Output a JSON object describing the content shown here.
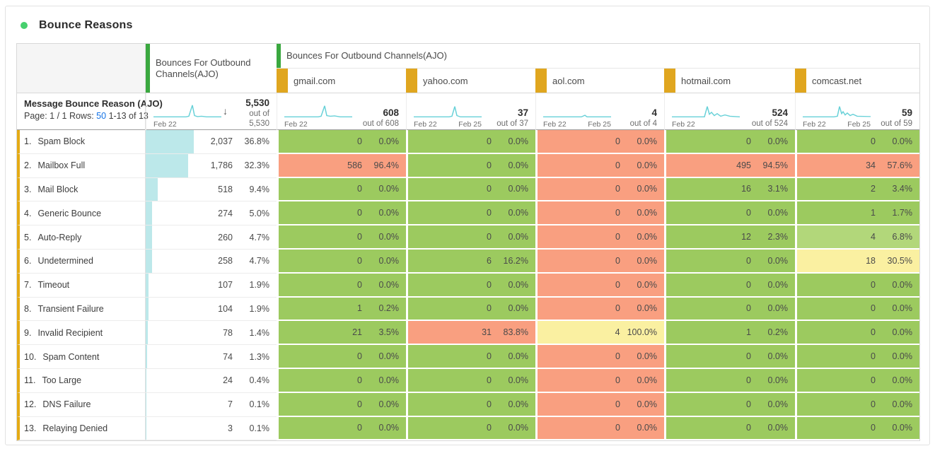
{
  "title": "Bounce Reasons",
  "sort_icon": "↓",
  "colors": {
    "green": "#9cca5f",
    "lightgreen": "#b2d77a",
    "yellow": "#faf0a1",
    "salmon": "#f99f80",
    "databar_cyan": "#bce8ea",
    "sparkline": "#68d1d8",
    "group_green_bar": "#3aa83f",
    "column_gold_bar": "#e0a61f",
    "row_gold_bar": "#e5ab14",
    "link_blue": "#1473e6",
    "title_dot_green": "#47d06e"
  },
  "table": {
    "groups": {
      "totals_label": "Bounces For Outbound Channels(AJO)",
      "domains_label": "Bounces For Outbound Channels(AJO)"
    },
    "metric_header": {
      "name": "Message Bounce Reason (AJO)",
      "page_label": "Page: 1 / 1",
      "rows_label": "Rows:",
      "rows_value": "50",
      "range_label": "1-13 of 13"
    },
    "columns": [
      {
        "key": "totals",
        "header": "",
        "total": "5,530",
        "out_of": "out of 5,530",
        "dates": [
          "Feb 22"
        ],
        "sorted": true,
        "spark": "0,20 46,20 50,19 55,2 58,18 62,19.5 68,19 75,20 96,20"
      },
      {
        "key": "gmail",
        "header": "gmail.com",
        "total": "608",
        "out_of": "out of 608",
        "dates": [
          "Feb 22"
        ],
        "spark": "0,20 48,20 52,19 57,3 60,18 65,19 71,18.5 79,20 96,20"
      },
      {
        "key": "yahoo",
        "header": "yahoo.com",
        "total": "37",
        "out_of": "out of 37",
        "dates": [
          "Feb 22",
          "Feb 25"
        ],
        "spark": "0,20 50,20 54,19 58,4 61,18 66,20 96,20"
      },
      {
        "key": "aol",
        "header": "aol.com",
        "total": "4",
        "out_of": "out of 4",
        "dates": [
          "Feb 22",
          "Feb 25"
        ],
        "spark": "0,20 54,20 57,18.5 59,17.5 62,20 96,20"
      },
      {
        "key": "hotmail",
        "header": "hotmail.com",
        "total": "524",
        "out_of": "out of 524",
        "dates": [
          "Feb 22"
        ],
        "spark": "0,20 46,20 50,4 53,16 56,13 60,18 64,15 69,19 75,17 82,19 96,20"
      },
      {
        "key": "comcast",
        "header": "comcast.net",
        "total": "59",
        "out_of": "out of 59",
        "dates": [
          "Feb 22",
          "Feb 25"
        ],
        "spark": "0,20 44,20 49,19 52,4 55,15 57,12 60,17 63,14 67,18 71,16 77,19 96,19.5"
      }
    ],
    "rows": [
      {
        "index": "1.",
        "label": "Spam Block",
        "total": {
          "value": "2,037",
          "pct": "36.8%",
          "bar": 36.8
        },
        "cells": [
          {
            "value": "0",
            "pct": "0.0%",
            "tone": "green"
          },
          {
            "value": "0",
            "pct": "0.0%",
            "tone": "green"
          },
          {
            "value": "0",
            "pct": "0.0%",
            "tone": "salmon"
          },
          {
            "value": "0",
            "pct": "0.0%",
            "tone": "green"
          },
          {
            "value": "0",
            "pct": "0.0%",
            "tone": "green"
          }
        ]
      },
      {
        "index": "2.",
        "label": "Mailbox Full",
        "total": {
          "value": "1,786",
          "pct": "32.3%",
          "bar": 32.3
        },
        "cells": [
          {
            "value": "586",
            "pct": "96.4%",
            "tone": "salmon"
          },
          {
            "value": "0",
            "pct": "0.0%",
            "tone": "green"
          },
          {
            "value": "0",
            "pct": "0.0%",
            "tone": "salmon"
          },
          {
            "value": "495",
            "pct": "94.5%",
            "tone": "salmon"
          },
          {
            "value": "34",
            "pct": "57.6%",
            "tone": "salmon"
          }
        ]
      },
      {
        "index": "3.",
        "label": "Mail Block",
        "total": {
          "value": "518",
          "pct": "9.4%",
          "bar": 9.4
        },
        "cells": [
          {
            "value": "0",
            "pct": "0.0%",
            "tone": "green"
          },
          {
            "value": "0",
            "pct": "0.0%",
            "tone": "green"
          },
          {
            "value": "0",
            "pct": "0.0%",
            "tone": "salmon"
          },
          {
            "value": "16",
            "pct": "3.1%",
            "tone": "green"
          },
          {
            "value": "2",
            "pct": "3.4%",
            "tone": "green"
          }
        ]
      },
      {
        "index": "4.",
        "label": "Generic Bounce",
        "total": {
          "value": "274",
          "pct": "5.0%",
          "bar": 5.0
        },
        "cells": [
          {
            "value": "0",
            "pct": "0.0%",
            "tone": "green"
          },
          {
            "value": "0",
            "pct": "0.0%",
            "tone": "green"
          },
          {
            "value": "0",
            "pct": "0.0%",
            "tone": "salmon"
          },
          {
            "value": "0",
            "pct": "0.0%",
            "tone": "green"
          },
          {
            "value": "1",
            "pct": "1.7%",
            "tone": "green"
          }
        ]
      },
      {
        "index": "5.",
        "label": "Auto-Reply",
        "total": {
          "value": "260",
          "pct": "4.7%",
          "bar": 4.7
        },
        "cells": [
          {
            "value": "0",
            "pct": "0.0%",
            "tone": "green"
          },
          {
            "value": "0",
            "pct": "0.0%",
            "tone": "green"
          },
          {
            "value": "0",
            "pct": "0.0%",
            "tone": "salmon"
          },
          {
            "value": "12",
            "pct": "2.3%",
            "tone": "green"
          },
          {
            "value": "4",
            "pct": "6.8%",
            "tone": "lightgreen"
          }
        ]
      },
      {
        "index": "6.",
        "label": "Undetermined",
        "total": {
          "value": "258",
          "pct": "4.7%",
          "bar": 4.7
        },
        "cells": [
          {
            "value": "0",
            "pct": "0.0%",
            "tone": "green"
          },
          {
            "value": "6",
            "pct": "16.2%",
            "tone": "green"
          },
          {
            "value": "0",
            "pct": "0.0%",
            "tone": "salmon"
          },
          {
            "value": "0",
            "pct": "0.0%",
            "tone": "green"
          },
          {
            "value": "18",
            "pct": "30.5%",
            "tone": "yellow"
          }
        ]
      },
      {
        "index": "7.",
        "label": "Timeout",
        "total": {
          "value": "107",
          "pct": "1.9%",
          "bar": 1.9
        },
        "cells": [
          {
            "value": "0",
            "pct": "0.0%",
            "tone": "green"
          },
          {
            "value": "0",
            "pct": "0.0%",
            "tone": "green"
          },
          {
            "value": "0",
            "pct": "0.0%",
            "tone": "salmon"
          },
          {
            "value": "0",
            "pct": "0.0%",
            "tone": "green"
          },
          {
            "value": "0",
            "pct": "0.0%",
            "tone": "green"
          }
        ]
      },
      {
        "index": "8.",
        "label": "Transient Failure",
        "total": {
          "value": "104",
          "pct": "1.9%",
          "bar": 1.9
        },
        "cells": [
          {
            "value": "1",
            "pct": "0.2%",
            "tone": "green"
          },
          {
            "value": "0",
            "pct": "0.0%",
            "tone": "green"
          },
          {
            "value": "0",
            "pct": "0.0%",
            "tone": "salmon"
          },
          {
            "value": "0",
            "pct": "0.0%",
            "tone": "green"
          },
          {
            "value": "0",
            "pct": "0.0%",
            "tone": "green"
          }
        ]
      },
      {
        "index": "9.",
        "label": "Invalid Recipient",
        "total": {
          "value": "78",
          "pct": "1.4%",
          "bar": 1.4
        },
        "cells": [
          {
            "value": "21",
            "pct": "3.5%",
            "tone": "green"
          },
          {
            "value": "31",
            "pct": "83.8%",
            "tone": "salmon"
          },
          {
            "value": "4",
            "pct": "100.0%",
            "tone": "yellow"
          },
          {
            "value": "1",
            "pct": "0.2%",
            "tone": "green"
          },
          {
            "value": "0",
            "pct": "0.0%",
            "tone": "green"
          }
        ]
      },
      {
        "index": "10.",
        "label": "Spam Content",
        "total": {
          "value": "74",
          "pct": "1.3%",
          "bar": 1.3
        },
        "cells": [
          {
            "value": "0",
            "pct": "0.0%",
            "tone": "green"
          },
          {
            "value": "0",
            "pct": "0.0%",
            "tone": "green"
          },
          {
            "value": "0",
            "pct": "0.0%",
            "tone": "salmon"
          },
          {
            "value": "0",
            "pct": "0.0%",
            "tone": "green"
          },
          {
            "value": "0",
            "pct": "0.0%",
            "tone": "green"
          }
        ]
      },
      {
        "index": "11.",
        "label": "Too Large",
        "total": {
          "value": "24",
          "pct": "0.4%",
          "bar": 0.4
        },
        "cells": [
          {
            "value": "0",
            "pct": "0.0%",
            "tone": "green"
          },
          {
            "value": "0",
            "pct": "0.0%",
            "tone": "green"
          },
          {
            "value": "0",
            "pct": "0.0%",
            "tone": "salmon"
          },
          {
            "value": "0",
            "pct": "0.0%",
            "tone": "green"
          },
          {
            "value": "0",
            "pct": "0.0%",
            "tone": "green"
          }
        ]
      },
      {
        "index": "12.",
        "label": "DNS Failure",
        "total": {
          "value": "7",
          "pct": "0.1%",
          "bar": 0.1
        },
        "cells": [
          {
            "value": "0",
            "pct": "0.0%",
            "tone": "green"
          },
          {
            "value": "0",
            "pct": "0.0%",
            "tone": "green"
          },
          {
            "value": "0",
            "pct": "0.0%",
            "tone": "salmon"
          },
          {
            "value": "0",
            "pct": "0.0%",
            "tone": "green"
          },
          {
            "value": "0",
            "pct": "0.0%",
            "tone": "green"
          }
        ]
      },
      {
        "index": "13.",
        "label": "Relaying Denied",
        "total": {
          "value": "3",
          "pct": "0.1%",
          "bar": 0.1
        },
        "cells": [
          {
            "value": "0",
            "pct": "0.0%",
            "tone": "green"
          },
          {
            "value": "0",
            "pct": "0.0%",
            "tone": "green"
          },
          {
            "value": "0",
            "pct": "0.0%",
            "tone": "salmon"
          },
          {
            "value": "0",
            "pct": "0.0%",
            "tone": "green"
          },
          {
            "value": "0",
            "pct": "0.0%",
            "tone": "green"
          }
        ]
      }
    ]
  }
}
